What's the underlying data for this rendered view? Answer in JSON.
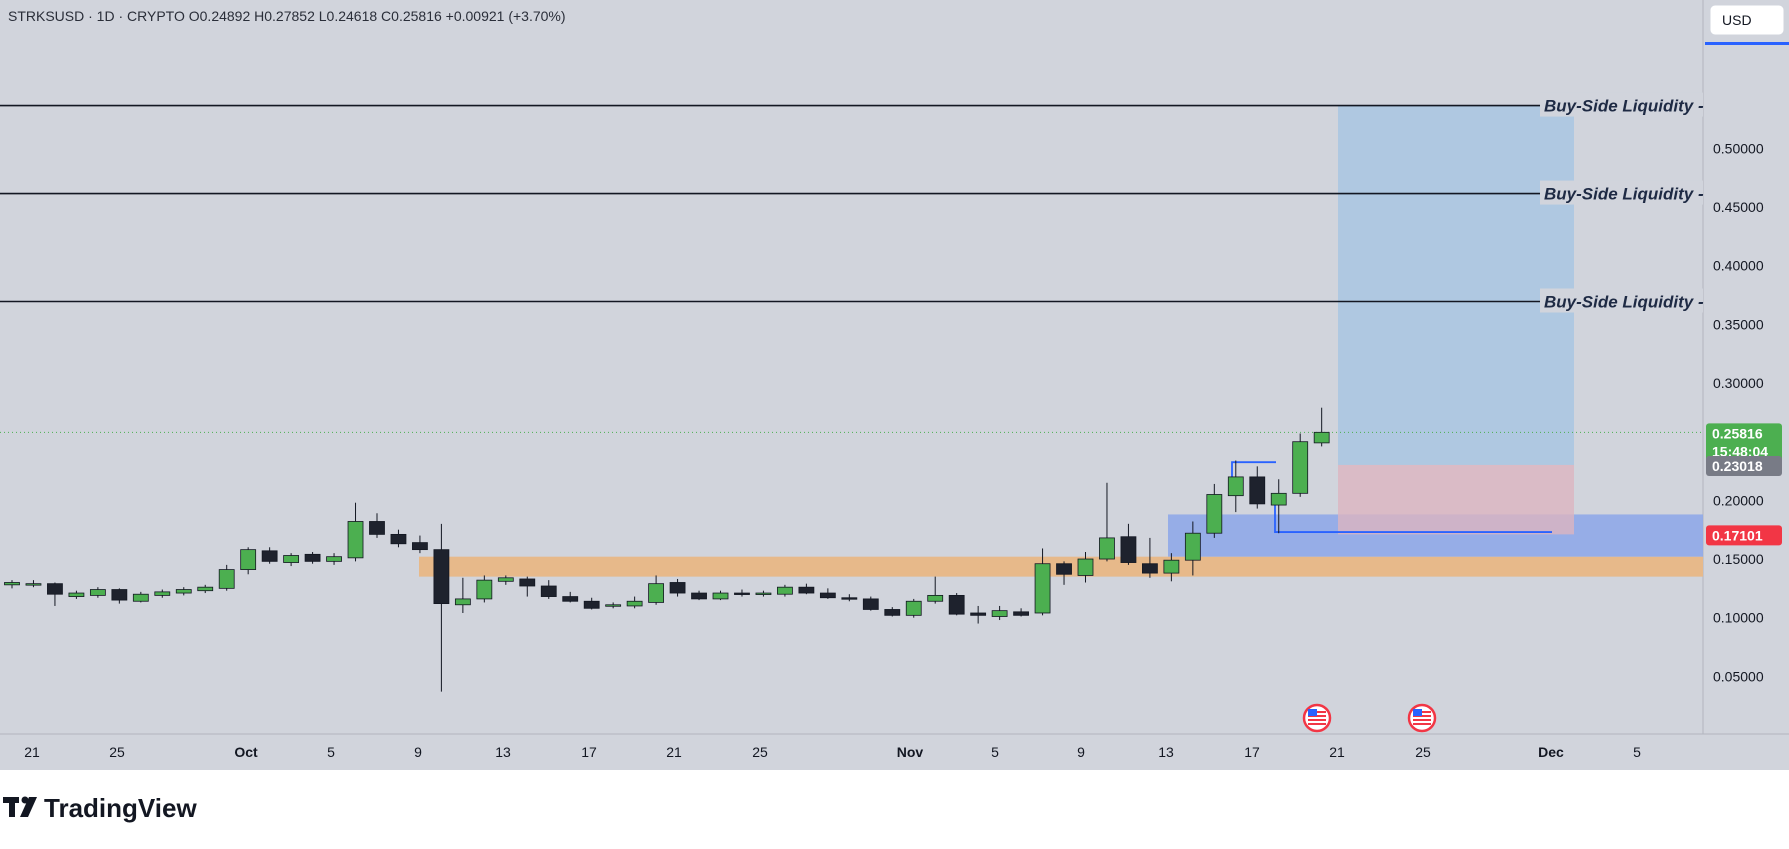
{
  "header": {
    "symbol": "STRKSUSD · 1D · CRYPTO",
    "open": "O0.24892",
    "high": "H0.27852",
    "low": "L0.24618",
    "close": "C0.25816",
    "change": "+0.00921 (+3.70%)"
  },
  "currency_button": "USD",
  "brand": "TradingView",
  "price_tags": {
    "last_price": "0.25816",
    "countdown": "15:48:04",
    "position_level": "0.23018",
    "stop_level": "0.17101"
  },
  "colors": {
    "background": "#d1d4dc",
    "bull": "#4caf50",
    "bear": "#1e222d",
    "zone_orange": "#e7b98a",
    "zone_blue": "#8fa8e8",
    "target_zone": "#a9c6e2",
    "stop_zone": "#dcb4c0",
    "last_price_tag": "#4caf50",
    "stop_tag": "#f23645",
    "position_tag": "#787b86",
    "currency_underline": "#2962ff"
  },
  "chart_data": {
    "type": "candlestick",
    "x_axis_labels": [
      "21",
      "25",
      "Oct",
      "5",
      "9",
      "13",
      "17",
      "21",
      "25",
      "Nov",
      "5",
      "9",
      "13",
      "17",
      "21",
      "25",
      "Dec",
      "5"
    ],
    "y_axis_labels": [
      "0.50000",
      "0.45000",
      "0.40000",
      "0.35000",
      "0.30000",
      "0.20000",
      "0.15000",
      "0.10000",
      "0.05000"
    ],
    "y_range": [
      0.0,
      0.545
    ],
    "candles": [
      {
        "o": 0.128,
        "h": 0.132,
        "l": 0.125,
        "c": 0.13
      },
      {
        "o": 0.129,
        "h": 0.132,
        "l": 0.126,
        "c": 0.129
      },
      {
        "o": 0.129,
        "h": 0.13,
        "l": 0.11,
        "c": 0.12
      },
      {
        "o": 0.118,
        "h": 0.123,
        "l": 0.116,
        "c": 0.121
      },
      {
        "o": 0.119,
        "h": 0.126,
        "l": 0.117,
        "c": 0.124
      },
      {
        "o": 0.124,
        "h": 0.125,
        "l": 0.112,
        "c": 0.115
      },
      {
        "o": 0.114,
        "h": 0.122,
        "l": 0.113,
        "c": 0.12
      },
      {
        "o": 0.119,
        "h": 0.124,
        "l": 0.117,
        "c": 0.122
      },
      {
        "o": 0.121,
        "h": 0.126,
        "l": 0.119,
        "c": 0.124
      },
      {
        "o": 0.123,
        "h": 0.128,
        "l": 0.121,
        "c": 0.126
      },
      {
        "o": 0.125,
        "h": 0.145,
        "l": 0.123,
        "c": 0.141
      },
      {
        "o": 0.141,
        "h": 0.16,
        "l": 0.137,
        "c": 0.158
      },
      {
        "o": 0.157,
        "h": 0.16,
        "l": 0.146,
        "c": 0.148
      },
      {
        "o": 0.147,
        "h": 0.155,
        "l": 0.144,
        "c": 0.153
      },
      {
        "o": 0.154,
        "h": 0.156,
        "l": 0.146,
        "c": 0.148
      },
      {
        "o": 0.148,
        "h": 0.155,
        "l": 0.145,
        "c": 0.152
      },
      {
        "o": 0.151,
        "h": 0.198,
        "l": 0.148,
        "c": 0.182
      },
      {
        "o": 0.182,
        "h": 0.189,
        "l": 0.168,
        "c": 0.171
      },
      {
        "o": 0.171,
        "h": 0.175,
        "l": 0.16,
        "c": 0.163
      },
      {
        "o": 0.164,
        "h": 0.17,
        "l": 0.155,
        "c": 0.158
      },
      {
        "o": 0.158,
        "h": 0.18,
        "l": 0.037,
        "c": 0.112
      },
      {
        "o": 0.111,
        "h": 0.134,
        "l": 0.104,
        "c": 0.116
      },
      {
        "o": 0.116,
        "h": 0.136,
        "l": 0.113,
        "c": 0.132
      },
      {
        "o": 0.131,
        "h": 0.136,
        "l": 0.128,
        "c": 0.134
      },
      {
        "o": 0.133,
        "h": 0.135,
        "l": 0.118,
        "c": 0.127
      },
      {
        "o": 0.127,
        "h": 0.132,
        "l": 0.116,
        "c": 0.118
      },
      {
        "o": 0.118,
        "h": 0.122,
        "l": 0.113,
        "c": 0.114
      },
      {
        "o": 0.114,
        "h": 0.117,
        "l": 0.107,
        "c": 0.108
      },
      {
        "o": 0.11,
        "h": 0.113,
        "l": 0.108,
        "c": 0.111
      },
      {
        "o": 0.11,
        "h": 0.118,
        "l": 0.108,
        "c": 0.114
      },
      {
        "o": 0.113,
        "h": 0.136,
        "l": 0.111,
        "c": 0.129
      },
      {
        "o": 0.13,
        "h": 0.133,
        "l": 0.118,
        "c": 0.121
      },
      {
        "o": 0.121,
        "h": 0.123,
        "l": 0.115,
        "c": 0.116
      },
      {
        "o": 0.116,
        "h": 0.123,
        "l": 0.115,
        "c": 0.121
      },
      {
        "o": 0.121,
        "h": 0.124,
        "l": 0.118,
        "c": 0.12
      },
      {
        "o": 0.12,
        "h": 0.123,
        "l": 0.118,
        "c": 0.121
      },
      {
        "o": 0.12,
        "h": 0.128,
        "l": 0.118,
        "c": 0.126
      },
      {
        "o": 0.126,
        "h": 0.129,
        "l": 0.12,
        "c": 0.121
      },
      {
        "o": 0.121,
        "h": 0.125,
        "l": 0.116,
        "c": 0.117
      },
      {
        "o": 0.117,
        "h": 0.12,
        "l": 0.114,
        "c": 0.116
      },
      {
        "o": 0.116,
        "h": 0.118,
        "l": 0.106,
        "c": 0.107
      },
      {
        "o": 0.107,
        "h": 0.109,
        "l": 0.101,
        "c": 0.102
      },
      {
        "o": 0.102,
        "h": 0.116,
        "l": 0.1,
        "c": 0.114
      },
      {
        "o": 0.114,
        "h": 0.135,
        "l": 0.112,
        "c": 0.119
      },
      {
        "o": 0.119,
        "h": 0.121,
        "l": 0.102,
        "c": 0.103
      },
      {
        "o": 0.104,
        "h": 0.11,
        "l": 0.095,
        "c": 0.102
      },
      {
        "o": 0.101,
        "h": 0.11,
        "l": 0.098,
        "c": 0.106
      },
      {
        "o": 0.105,
        "h": 0.108,
        "l": 0.101,
        "c": 0.102
      },
      {
        "o": 0.104,
        "h": 0.159,
        "l": 0.102,
        "c": 0.146
      },
      {
        "o": 0.146,
        "h": 0.148,
        "l": 0.128,
        "c": 0.137
      },
      {
        "o": 0.136,
        "h": 0.156,
        "l": 0.13,
        "c": 0.15
      },
      {
        "o": 0.15,
        "h": 0.215,
        "l": 0.148,
        "c": 0.168
      },
      {
        "o": 0.169,
        "h": 0.18,
        "l": 0.145,
        "c": 0.147
      },
      {
        "o": 0.146,
        "h": 0.168,
        "l": 0.134,
        "c": 0.138
      },
      {
        "o": 0.138,
        "h": 0.155,
        "l": 0.131,
        "c": 0.149
      },
      {
        "o": 0.149,
        "h": 0.182,
        "l": 0.136,
        "c": 0.172
      },
      {
        "o": 0.172,
        "h": 0.214,
        "l": 0.168,
        "c": 0.205
      },
      {
        "o": 0.204,
        "h": 0.234,
        "l": 0.19,
        "c": 0.22
      },
      {
        "o": 0.22,
        "h": 0.229,
        "l": 0.193,
        "c": 0.197
      },
      {
        "o": 0.196,
        "h": 0.218,
        "l": 0.172,
        "c": 0.206
      },
      {
        "o": 0.206,
        "h": 0.257,
        "l": 0.203,
        "c": 0.25
      },
      {
        "o": 0.249,
        "h": 0.279,
        "l": 0.246,
        "c": 0.258
      }
    ],
    "horizontal_lines": [
      {
        "label": "Buy-Side Liquidity",
        "price": 0.5365
      },
      {
        "label": "Buy-Side Liquidity",
        "price": 0.4615
      },
      {
        "label": "Buy-Side Liquidity",
        "price": 0.3695
      }
    ],
    "zones": [
      {
        "name": "orange-demand-zone",
        "from": 0.135,
        "to": 0.152
      },
      {
        "name": "blue-fvg-zone",
        "from": 0.152,
        "to": 0.188
      }
    ],
    "long_position": {
      "entry": 0.23018,
      "stop": 0.17101,
      "target": 0.5365
    },
    "blue_markers": [
      {
        "price": 0.23
      },
      {
        "price": 0.173
      }
    ]
  }
}
